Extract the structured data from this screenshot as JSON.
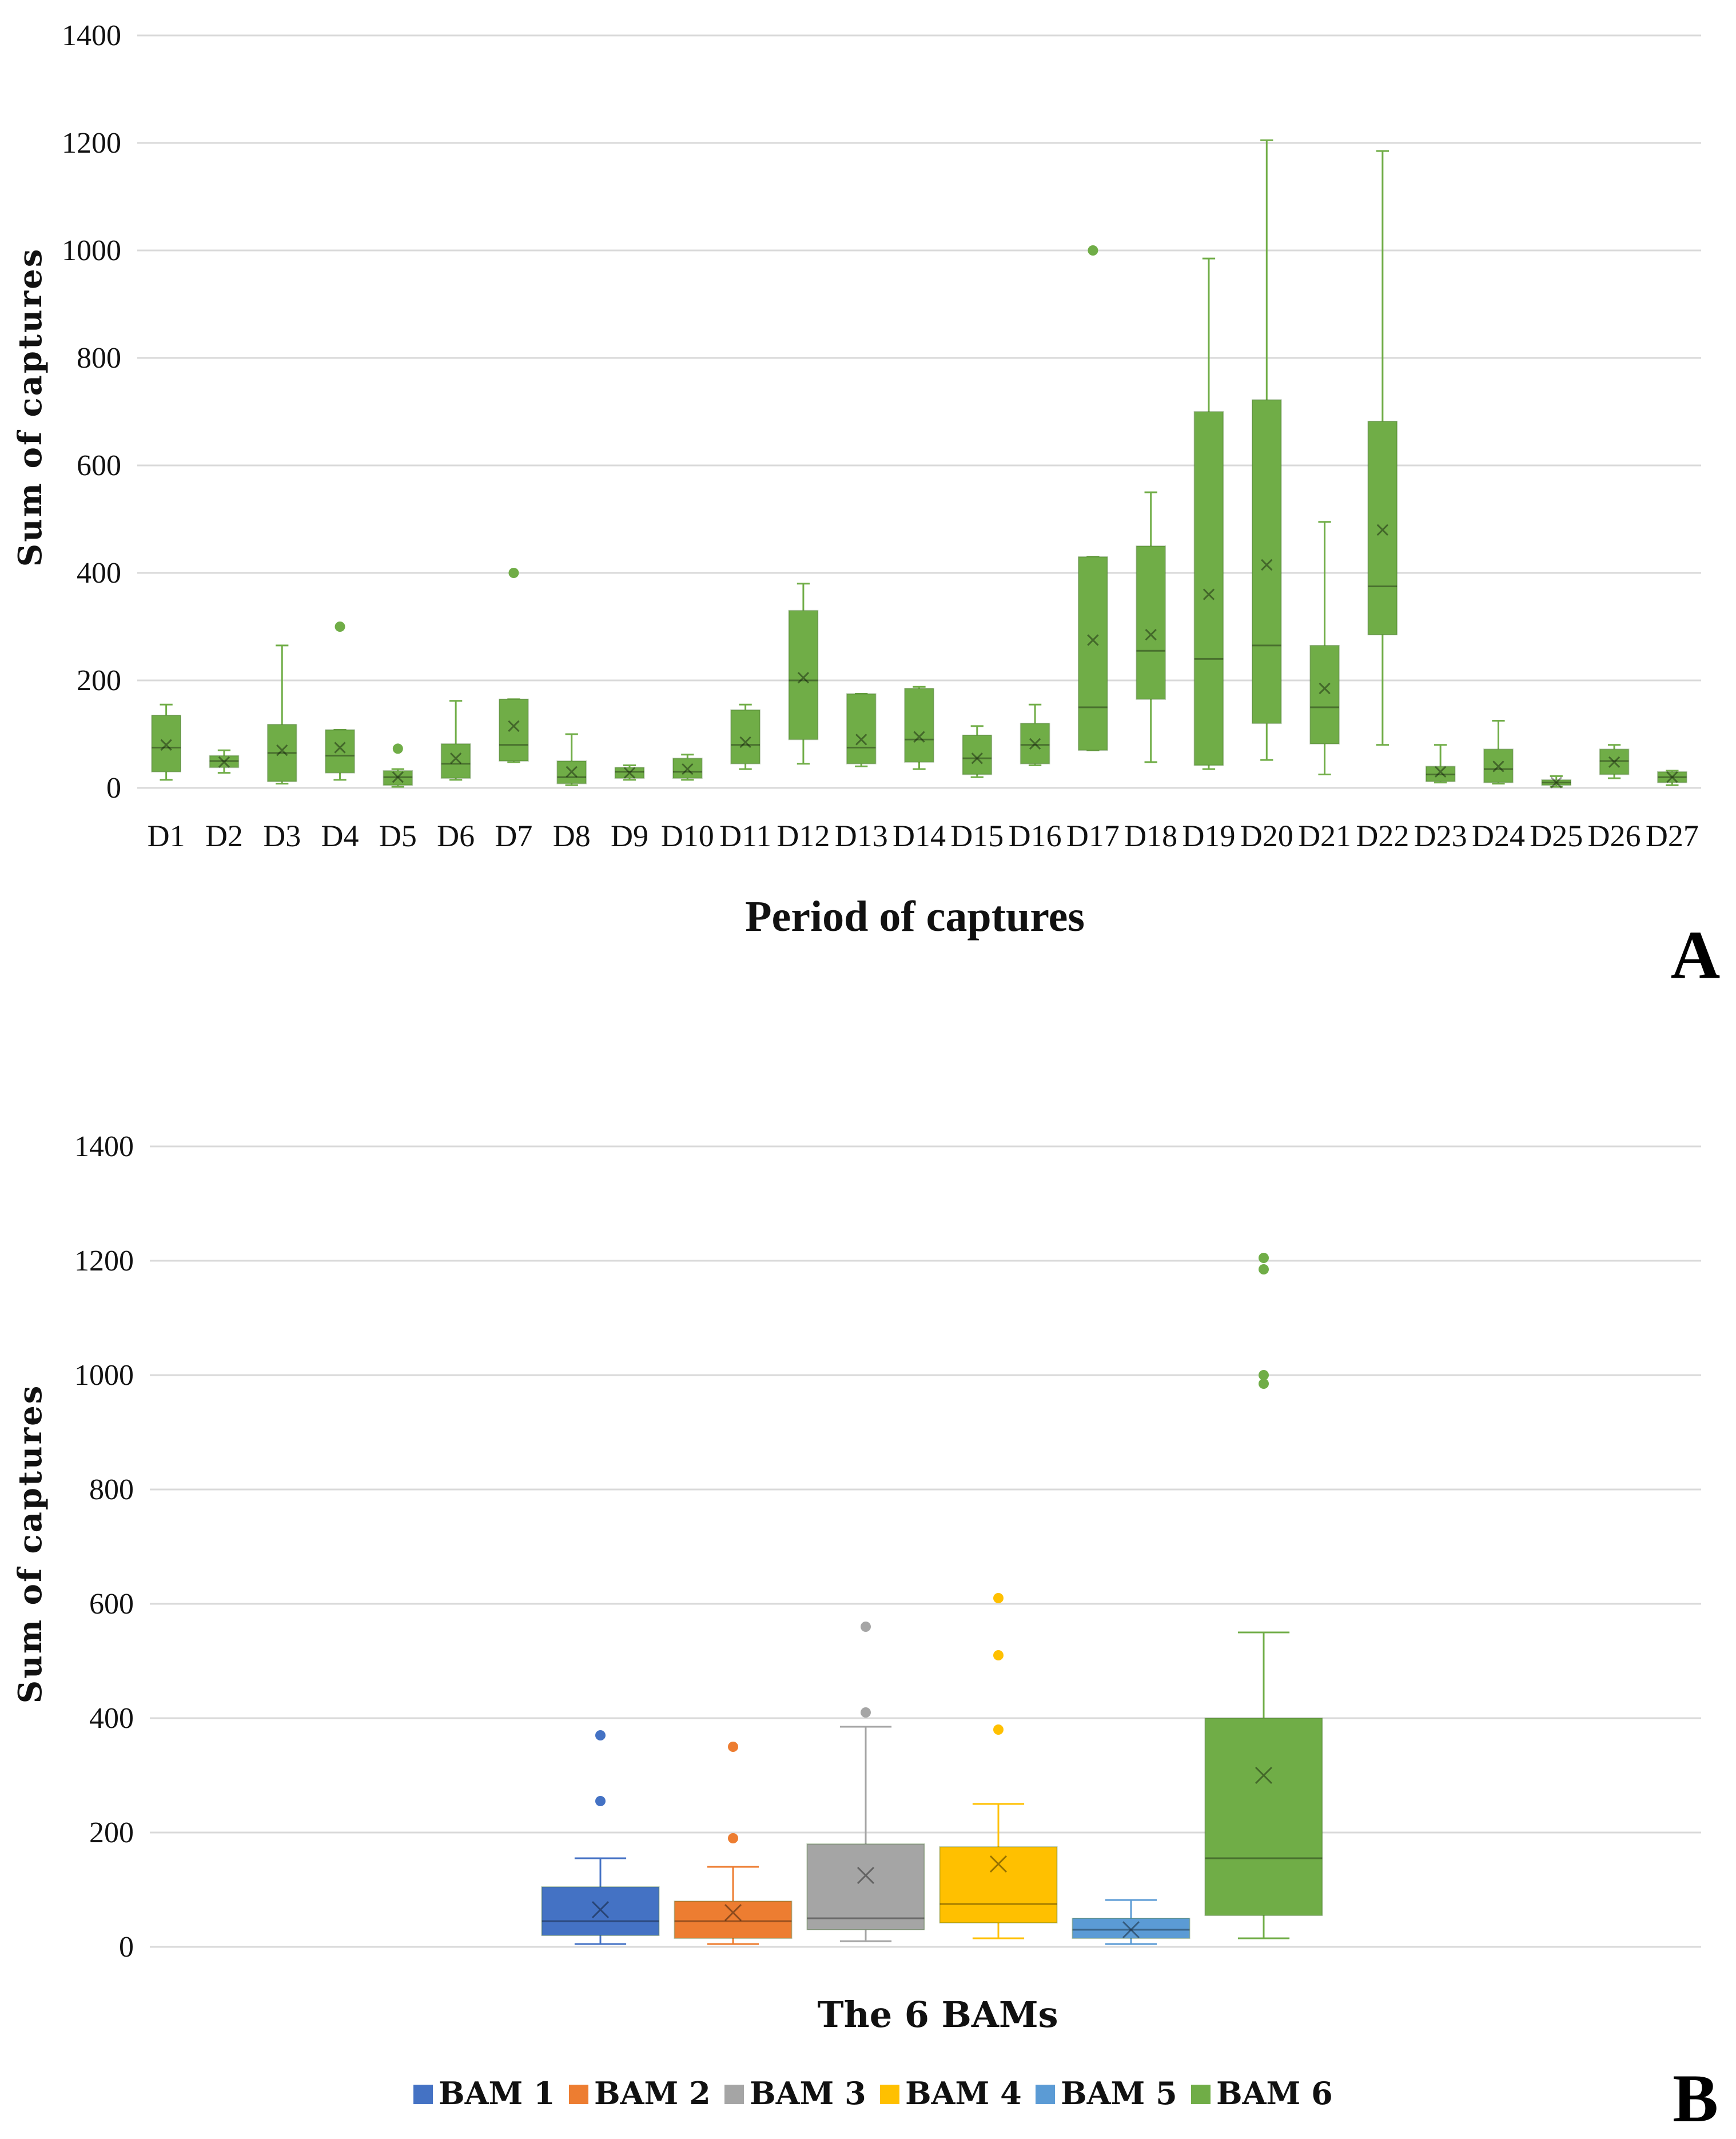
{
  "chart_data": [
    {
      "panel": "A",
      "type": "boxplot",
      "ylabel": "Sum of captures",
      "xlabel": "Period of captures",
      "ylim": [
        0,
        1400
      ],
      "yticks": [
        0,
        200,
        400,
        600,
        800,
        1000,
        1200,
        1400
      ],
      "color": "#70ad47",
      "categories": [
        "D1",
        "D2",
        "D3",
        "D4",
        "D5",
        "D6",
        "D7",
        "D8",
        "D9",
        "D10",
        "D11",
        "D12",
        "D13",
        "D14",
        "D15",
        "D16",
        "D17",
        "D18",
        "D19",
        "D20",
        "D21",
        "D22",
        "D23",
        "D24",
        "D25",
        "D26",
        "D27"
      ],
      "boxes": [
        {
          "min": 15,
          "q1": 30,
          "median": 75,
          "q3": 135,
          "max": 155,
          "mean": 80,
          "outliers": []
        },
        {
          "min": 28,
          "q1": 38,
          "median": 50,
          "q3": 60,
          "max": 70,
          "mean": 48,
          "outliers": []
        },
        {
          "min": 8,
          "q1": 12,
          "median": 65,
          "q3": 118,
          "max": 265,
          "mean": 70,
          "outliers": []
        },
        {
          "min": 15,
          "q1": 28,
          "median": 60,
          "q3": 108,
          "max": 108,
          "mean": 75,
          "outliers": [
            300
          ]
        },
        {
          "min": 2,
          "q1": 5,
          "median": 20,
          "q3": 32,
          "max": 35,
          "mean": 20,
          "outliers": [
            73
          ]
        },
        {
          "min": 15,
          "q1": 18,
          "median": 45,
          "q3": 82,
          "max": 162,
          "mean": 55,
          "outliers": []
        },
        {
          "min": 48,
          "q1": 50,
          "median": 80,
          "q3": 165,
          "max": 165,
          "mean": 115,
          "outliers": [
            400
          ]
        },
        {
          "min": 5,
          "q1": 8,
          "median": 20,
          "q3": 50,
          "max": 100,
          "mean": 30,
          "outliers": []
        },
        {
          "min": 15,
          "q1": 18,
          "median": 30,
          "q3": 38,
          "max": 42,
          "mean": 28,
          "outliers": []
        },
        {
          "min": 15,
          "q1": 18,
          "median": 30,
          "q3": 55,
          "max": 62,
          "mean": 35,
          "outliers": []
        },
        {
          "min": 35,
          "q1": 45,
          "median": 80,
          "q3": 145,
          "max": 155,
          "mean": 85,
          "outliers": []
        },
        {
          "min": 45,
          "q1": 90,
          "median": 200,
          "q3": 330,
          "max": 380,
          "mean": 205,
          "outliers": []
        },
        {
          "min": 40,
          "q1": 45,
          "median": 75,
          "q3": 175,
          "max": 175,
          "mean": 90,
          "outliers": []
        },
        {
          "min": 35,
          "q1": 48,
          "median": 90,
          "q3": 185,
          "max": 188,
          "mean": 95,
          "outliers": []
        },
        {
          "min": 20,
          "q1": 25,
          "median": 55,
          "q3": 98,
          "max": 115,
          "mean": 55,
          "outliers": []
        },
        {
          "min": 42,
          "q1": 45,
          "median": 80,
          "q3": 120,
          "max": 155,
          "mean": 82,
          "outliers": []
        },
        {
          "min": 70,
          "q1": 70,
          "median": 150,
          "q3": 430,
          "max": 430,
          "mean": 275,
          "outliers": [
            1000
          ]
        },
        {
          "min": 48,
          "q1": 165,
          "median": 255,
          "q3": 450,
          "max": 550,
          "mean": 285,
          "outliers": []
        },
        {
          "min": 35,
          "q1": 42,
          "median": 240,
          "q3": 700,
          "max": 985,
          "mean": 360,
          "outliers": []
        },
        {
          "min": 52,
          "q1": 120,
          "median": 265,
          "q3": 722,
          "max": 1205,
          "mean": 415,
          "outliers": []
        },
        {
          "min": 25,
          "q1": 82,
          "median": 150,
          "q3": 265,
          "max": 495,
          "mean": 185,
          "outliers": []
        },
        {
          "min": 80,
          "q1": 285,
          "median": 375,
          "q3": 682,
          "max": 1185,
          "mean": 480,
          "outliers": []
        },
        {
          "min": 10,
          "q1": 12,
          "median": 25,
          "q3": 40,
          "max": 80,
          "mean": 30,
          "outliers": []
        },
        {
          "min": 8,
          "q1": 10,
          "median": 35,
          "q3": 72,
          "max": 125,
          "mean": 40,
          "outliers": []
        },
        {
          "min": 2,
          "q1": 5,
          "median": 10,
          "q3": 15,
          "max": 22,
          "mean": 10,
          "outliers": []
        },
        {
          "min": 18,
          "q1": 25,
          "median": 50,
          "q3": 72,
          "max": 80,
          "mean": 48,
          "outliers": []
        },
        {
          "min": 5,
          "q1": 10,
          "median": 20,
          "q3": 30,
          "max": 32,
          "mean": 20,
          "outliers": []
        }
      ]
    },
    {
      "panel": "B",
      "type": "boxplot",
      "ylabel": "Sum of captures",
      "xlabel": "The 6 BAMs",
      "ylim": [
        0,
        1400
      ],
      "yticks": [
        0,
        200,
        400,
        600,
        800,
        1000,
        1200,
        1400
      ],
      "legend_position": "bottom",
      "series": [
        {
          "name": "BAM 1",
          "color": "#4472c4",
          "min": 5,
          "q1": 20,
          "median": 45,
          "q3": 105,
          "max": 155,
          "mean": 65,
          "outliers": [
            255,
            370
          ]
        },
        {
          "name": "BAM 2",
          "color": "#ed7d31",
          "min": 5,
          "q1": 15,
          "median": 45,
          "q3": 80,
          "max": 140,
          "mean": 60,
          "outliers": [
            190,
            350
          ]
        },
        {
          "name": "BAM 3",
          "color": "#a5a5a5",
          "min": 10,
          "q1": 30,
          "median": 50,
          "q3": 180,
          "max": 385,
          "mean": 125,
          "outliers": [
            410,
            560
          ]
        },
        {
          "name": "BAM 4",
          "color": "#ffc000",
          "min": 15,
          "q1": 42,
          "median": 75,
          "q3": 175,
          "max": 250,
          "mean": 145,
          "outliers": [
            380,
            510,
            610
          ]
        },
        {
          "name": "BAM 5",
          "color": "#5b9bd5",
          "min": 5,
          "q1": 15,
          "median": 30,
          "q3": 50,
          "max": 82,
          "mean": 30,
          "outliers": []
        },
        {
          "name": "BAM 6",
          "color": "#70ad47",
          "min": 15,
          "q1": 55,
          "median": 155,
          "q3": 400,
          "max": 550,
          "mean": 300,
          "outliers": [
            985,
            1000,
            1185,
            1205
          ]
        }
      ]
    }
  ]
}
